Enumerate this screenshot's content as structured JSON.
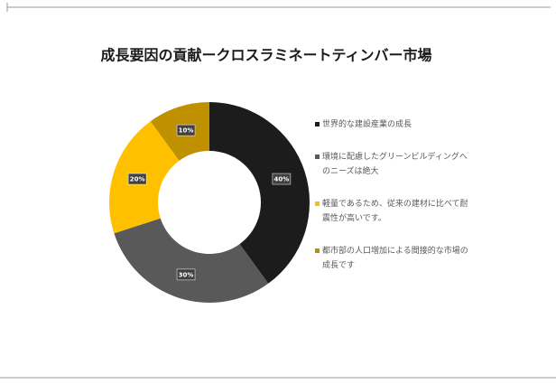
{
  "chart_data": {
    "type": "donut",
    "title": "成長要因の貢献ークロスラミネートティンバー市場",
    "categories": [
      "世界的な建設産業の成長",
      "環境に配慮したグリーンビルディングへのニーズは絶大",
      "軽量であるため、従来の建材に比べて耐震性が高いです。",
      "都市部の人口増加による間接的な市場の成長です"
    ],
    "values": [
      40,
      30,
      20,
      10
    ],
    "value_labels": [
      "40%",
      "30%",
      "20%",
      "10%"
    ],
    "colors": [
      "#1c1c1c",
      "#595959",
      "#ffc000",
      "#bf9000"
    ]
  }
}
